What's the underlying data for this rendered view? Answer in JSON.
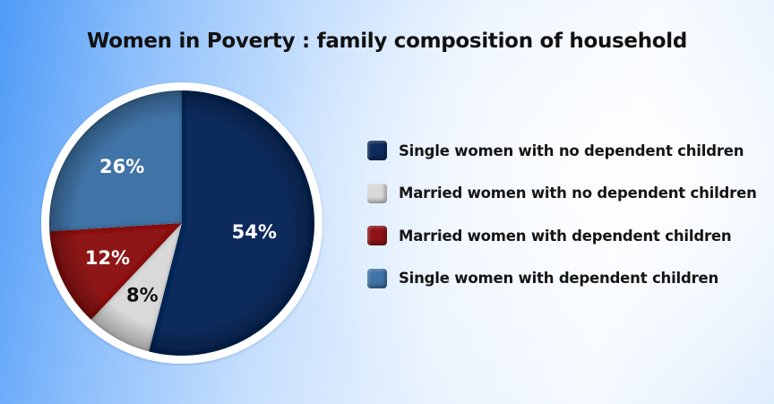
{
  "title": "Women in Poverty : family composition of household",
  "chart_data": {
    "type": "pie",
    "title": "Women in Poverty : family composition of household",
    "categories": [
      "Single women with no dependent children",
      "Married women with no dependent children",
      "Married women with dependent children",
      "Single women with dependent children"
    ],
    "values": [
      54,
      8,
      12,
      26
    ],
    "unit": "%",
    "data_labels": [
      "54%",
      "8%",
      "12%",
      "26%"
    ],
    "colors": [
      "#0f2a5c",
      "#d9d9d9",
      "#8e1418",
      "#3f73a6"
    ],
    "label_colors": [
      "#ffffff",
      "#111111",
      "#ffffff",
      "#ffffff"
    ],
    "start_angle": "12 o'clock",
    "direction": "clockwise",
    "legend_position": "right"
  },
  "legend": {
    "items": [
      {
        "label": "Single women with no dependent children",
        "color": "#0f2a5c"
      },
      {
        "label": "Married women with no dependent children",
        "color": "#d9d9d9"
      },
      {
        "label": "Married women with dependent children",
        "color": "#8e1418"
      },
      {
        "label": "Single women with dependent children",
        "color": "#3f73a6"
      }
    ]
  }
}
